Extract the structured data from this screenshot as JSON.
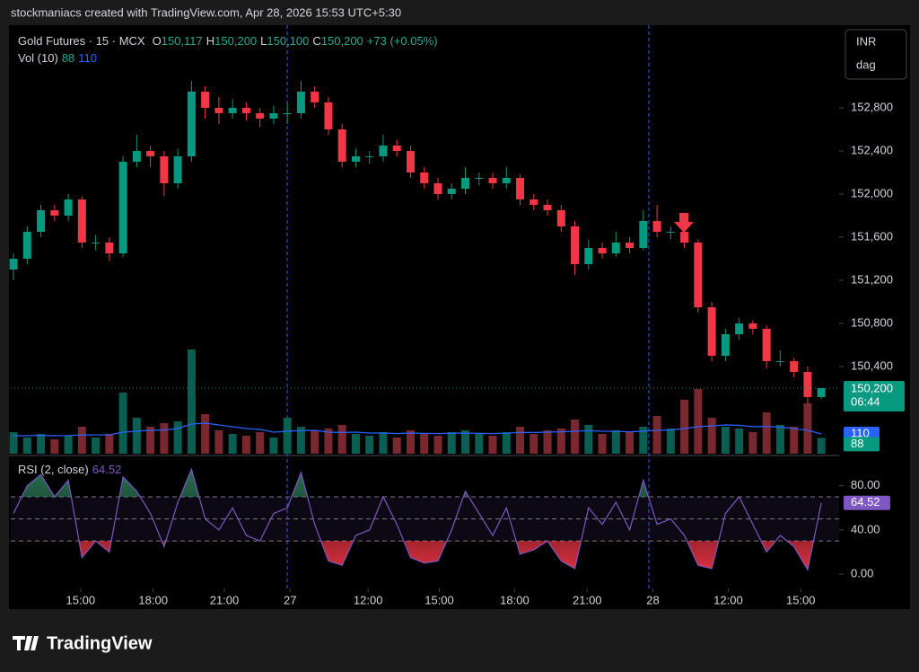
{
  "header": {
    "attribution": "stockmaniacs created with TradingView.com, Apr 28, 2026 15:53 UTC+5:30"
  },
  "footer": {
    "brand": "TradingView"
  },
  "chart_data": [
    {
      "type": "candlestick",
      "title": "Gold Futures · 15 · MCX",
      "legend": [
        {
          "label": "O",
          "value": "150,117"
        },
        {
          "label": "H",
          "value": "150,200"
        },
        {
          "label": "L",
          "value": "150,100"
        },
        {
          "label": "C",
          "value": "150,200"
        }
      ],
      "change": "+73 (+0.05%)",
      "currency": "INR",
      "unit": "dag",
      "countdown": "06:44",
      "up_color": "#089981",
      "down_color": "#f23645",
      "xlim": [
        -0.2,
        60.3
      ],
      "ylim": [
        149575,
        153550
      ],
      "yticks": [
        {
          "value": 150400,
          "label": "150,400"
        },
        {
          "value": 150800,
          "label": "150,800"
        },
        {
          "value": 151200,
          "label": "151,200"
        },
        {
          "value": 151600,
          "label": "151,600"
        },
        {
          "value": 152000,
          "label": "152,000"
        },
        {
          "value": 152400,
          "label": "152,400"
        },
        {
          "value": 152800,
          "label": "152,800"
        }
      ],
      "ohlc": [
        [
          151300,
          151450,
          151200,
          151400
        ],
        [
          151400,
          151700,
          151350,
          151650
        ],
        [
          151650,
          151900,
          151600,
          151850
        ],
        [
          151850,
          151900,
          151750,
          151800
        ],
        [
          151800,
          152000,
          151750,
          151950
        ],
        [
          151950,
          151980,
          151500,
          151550
        ],
        [
          151550,
          151620,
          151480,
          151550
        ],
        [
          151550,
          151600,
          151380,
          151450
        ],
        [
          151450,
          152350,
          151420,
          152300
        ],
        [
          152300,
          152550,
          152250,
          152400
        ],
        [
          152400,
          152450,
          152250,
          152350
        ],
        [
          152350,
          152400,
          151980,
          152100
        ],
        [
          152100,
          152420,
          152050,
          152350
        ],
        [
          152350,
          153050,
          152300,
          152950
        ],
        [
          152950,
          153000,
          152700,
          152800
        ],
        [
          152800,
          152900,
          152650,
          152750
        ],
        [
          152750,
          152880,
          152700,
          152800
        ],
        [
          152800,
          152850,
          152680,
          152750
        ],
        [
          152750,
          152800,
          152620,
          152700
        ],
        [
          152700,
          152820,
          152650,
          152750
        ],
        [
          152750,
          152850,
          152650,
          152750
        ],
        [
          152750,
          153050,
          152700,
          152950
        ],
        [
          152950,
          153000,
          152800,
          152850
        ],
        [
          152850,
          152900,
          152550,
          152600
        ],
        [
          152600,
          152650,
          152250,
          152300
        ],
        [
          152300,
          152420,
          152250,
          152350
        ],
        [
          152350,
          152400,
          152280,
          152350
        ],
        [
          152350,
          152550,
          152300,
          152450
        ],
        [
          152450,
          152500,
          152350,
          152400
        ],
        [
          152400,
          152450,
          152150,
          152200
        ],
        [
          152200,
          152250,
          152050,
          152100
        ],
        [
          152100,
          152150,
          151950,
          152000
        ],
        [
          152000,
          152100,
          151950,
          152050
        ],
        [
          152050,
          152250,
          152000,
          152150
        ],
        [
          152150,
          152200,
          152080,
          152150
        ],
        [
          152150,
          152200,
          152050,
          152100
        ],
        [
          152100,
          152250,
          152050,
          152150
        ],
        [
          152150,
          152180,
          151900,
          151950
        ],
        [
          151950,
          152000,
          151850,
          151900
        ],
        [
          151900,
          151950,
          151800,
          151850
        ],
        [
          151850,
          151900,
          151650,
          151700
        ],
        [
          151700,
          151750,
          151250,
          151350
        ],
        [
          151350,
          151580,
          151300,
          151500
        ],
        [
          151500,
          151550,
          151400,
          151450
        ],
        [
          151450,
          151650,
          151420,
          151550
        ],
        [
          151550,
          151600,
          151450,
          151500
        ],
        [
          151500,
          151850,
          151480,
          151750
        ],
        [
          151750,
          151900,
          151600,
          151650
        ],
        [
          151650,
          151700,
          151580,
          151650
        ],
        [
          151650,
          151680,
          151500,
          151550
        ],
        [
          151550,
          151580,
          150900,
          150950
        ],
        [
          150950,
          151000,
          150450,
          150500
        ],
        [
          150500,
          150750,
          150450,
          150700
        ],
        [
          150700,
          150850,
          150650,
          150800
        ],
        [
          150800,
          150830,
          150700,
          150750
        ],
        [
          150750,
          150780,
          150380,
          150450
        ],
        [
          150450,
          150550,
          150400,
          150450
        ],
        [
          150450,
          150480,
          150300,
          150350
        ],
        [
          150350,
          150400,
          150050,
          150117
        ],
        [
          150117,
          150200,
          150100,
          150200
        ]
      ]
    },
    {
      "type": "bar",
      "title": "Vol (10)",
      "ylim": [
        0,
        600
      ],
      "ma_color": "#2962ff",
      "values": [
        120,
        90,
        110,
        80,
        100,
        150,
        90,
        110,
        340,
        200,
        150,
        170,
        180,
        580,
        220,
        130,
        110,
        100,
        120,
        90,
        200,
        150,
        130,
        140,
        160,
        110,
        100,
        120,
        90,
        130,
        110,
        100,
        120,
        130,
        110,
        100,
        120,
        150,
        110,
        130,
        140,
        190,
        160,
        110,
        130,
        120,
        150,
        210,
        140,
        300,
        360,
        200,
        150,
        140,
        120,
        230,
        160,
        150,
        280,
        88
      ],
      "ma": [
        100,
        100,
        102,
        100,
        101,
        105,
        104,
        105,
        120,
        125,
        130,
        132,
        140,
        165,
        170,
        160,
        150,
        140,
        135,
        120,
        125,
        128,
        130,
        120,
        118,
        120,
        115,
        115,
        112,
        115,
        113,
        112,
        114,
        115,
        113,
        112,
        114,
        118,
        118,
        120,
        122,
        125,
        128,
        125,
        124,
        122,
        125,
        130,
        132,
        140,
        150,
        155,
        160,
        158,
        150,
        152,
        148,
        140,
        130,
        110
      ]
    },
    {
      "type": "line",
      "title": "RSI (2, close)",
      "color": "#7e57c2",
      "ylim": [
        -13,
        105
      ],
      "levels": [
        70,
        50,
        30
      ],
      "yticks": [
        {
          "value": 0,
          "label": "0.00"
        },
        {
          "value": 40,
          "label": "40.00"
        },
        {
          "value": 80,
          "label": "80.00"
        }
      ],
      "xlim": [
        -0.2,
        60.3
      ],
      "xticks": [
        {
          "value": 4.9,
          "label": "15:00"
        },
        {
          "value": 10.2,
          "label": "18:00"
        },
        {
          "value": 15.4,
          "label": "21:00"
        },
        {
          "value": 20.2,
          "label": "27"
        },
        {
          "value": 25.9,
          "label": "12:00"
        },
        {
          "value": 31.1,
          "label": "15:00"
        },
        {
          "value": 36.6,
          "label": "18:00"
        },
        {
          "value": 41.9,
          "label": "21:00"
        },
        {
          "value": 46.7,
          "label": "28"
        },
        {
          "value": 52.2,
          "label": "12:00"
        },
        {
          "value": 57.5,
          "label": "15:00"
        }
      ],
      "values": [
        55,
        80,
        90,
        70,
        85,
        15,
        30,
        20,
        88,
        75,
        55,
        25,
        65,
        95,
        50,
        40,
        60,
        35,
        30,
        55,
        60,
        92,
        45,
        12,
        8,
        35,
        40,
        70,
        45,
        15,
        10,
        12,
        40,
        75,
        55,
        35,
        60,
        18,
        22,
        30,
        12,
        5,
        60,
        45,
        65,
        40,
        85,
        45,
        50,
        35,
        8,
        5,
        55,
        70,
        45,
        20,
        35,
        25,
        4,
        64.52
      ]
    }
  ]
}
